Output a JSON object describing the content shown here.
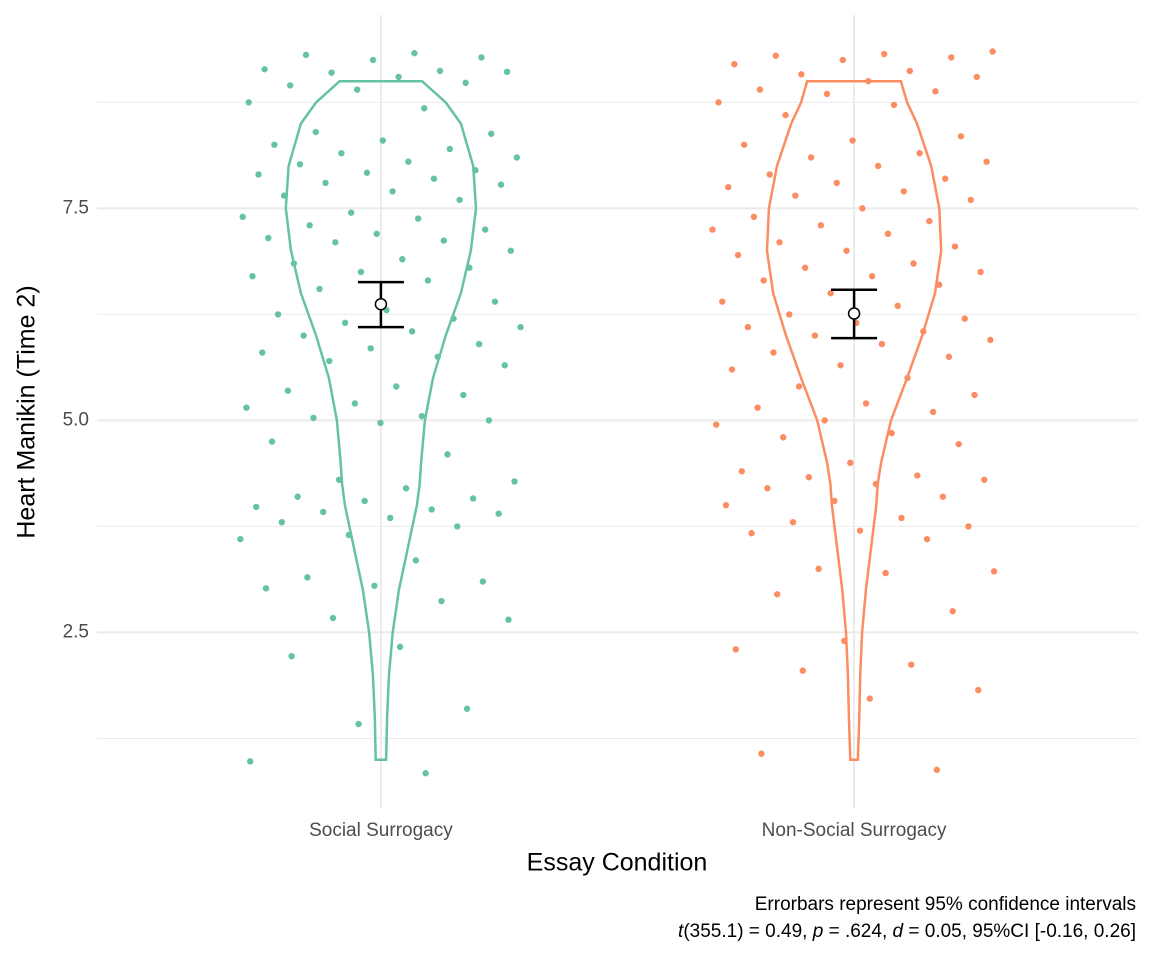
{
  "chart_data": {
    "type": "violin",
    "x_label": "Essay Condition",
    "y_label": "Heart Manikin (Time 2)",
    "categories": [
      "Social Surrogacy",
      "Non-Social Surrogacy"
    ],
    "ylim": [
      0.43,
      9.78
    ],
    "yticks": [
      2.5,
      {
        "value": 5,
        "label": "5.0"
      },
      7.5
    ],
    "yminor": [
      1.25,
      3.75,
      6.25,
      8.75
    ],
    "grid": true,
    "violin_y": [
      9,
      8.75,
      8.5,
      8,
      7.5,
      7,
      6.5,
      6,
      5.5,
      5,
      4.5,
      4.25,
      4,
      3.5,
      3,
      2.5,
      2,
      1.5,
      1
    ],
    "groups": [
      {
        "color": "#66c2a5",
        "mean": 6.37,
        "ci_low": 6.1,
        "ci_high": 6.63,
        "violin_width": [
          0.087,
          0.137,
          0.169,
          0.195,
          0.201,
          0.19,
          0.169,
          0.137,
          0.11,
          0.093,
          0.085,
          0.082,
          0.076,
          0.057,
          0.038,
          0.025,
          0.017,
          0.013,
          0.011
        ],
        "points": [
          9.33,
          9.31,
          9.28,
          9.25,
          9.14,
          9.12,
          9.1,
          9.11,
          9.05,
          8.95,
          8.98,
          8.9,
          8.75,
          8.68,
          8.4,
          8.38,
          8.3,
          8.25,
          8.2,
          8.15,
          8.1,
          8.05,
          8.02,
          7.95,
          7.92,
          7.9,
          7.85,
          7.8,
          7.78,
          7.7,
          7.65,
          7.6,
          7.45,
          7.4,
          7.38,
          7.3,
          7.25,
          7.2,
          7.15,
          7.12,
          7.1,
          7.0,
          6.9,
          6.85,
          6.8,
          6.75,
          6.7,
          6.65,
          6.55,
          6.4,
          6.3,
          6.25,
          6.2,
          6.15,
          6.1,
          6.05,
          6.0,
          5.9,
          5.85,
          5.8,
          5.75,
          5.7,
          5.65,
          5.4,
          5.35,
          5.3,
          5.2,
          5.15,
          5.05,
          5.03,
          5.0,
          4.97,
          4.75,
          4.6,
          4.3,
          4.28,
          4.2,
          4.1,
          4.08,
          4.05,
          3.98,
          3.95,
          3.92,
          3.9,
          3.85,
          3.8,
          3.75,
          3.65,
          3.6,
          3.35,
          3.15,
          3.1,
          3.05,
          3.02,
          2.87,
          2.67,
          2.65,
          2.33,
          2.22,
          1.6,
          1.42,
          0.98,
          0.84
        ]
      },
      {
        "color": "#fc8d62",
        "mean": 6.26,
        "ci_low": 5.97,
        "ci_high": 6.54,
        "violin_width": [
          0.099,
          0.112,
          0.133,
          0.163,
          0.18,
          0.184,
          0.171,
          0.144,
          0.112,
          0.078,
          0.057,
          0.05,
          0.047,
          0.036,
          0.025,
          0.017,
          0.013,
          0.011,
          0.008
        ],
        "points": [
          9.35,
          9.32,
          9.3,
          9.28,
          9.25,
          9.2,
          9.12,
          9.08,
          9.05,
          9.0,
          8.9,
          8.88,
          8.85,
          8.75,
          8.72,
          8.6,
          8.35,
          8.3,
          8.25,
          8.15,
          8.1,
          8.05,
          8.0,
          7.9,
          7.85,
          7.8,
          7.75,
          7.7,
          7.65,
          7.6,
          7.5,
          7.4,
          7.35,
          7.3,
          7.25,
          7.2,
          7.1,
          7.05,
          7.0,
          6.95,
          6.85,
          6.8,
          6.75,
          6.7,
          6.65,
          6.6,
          6.5,
          6.4,
          6.35,
          6.25,
          6.2,
          6.15,
          6.1,
          6.05,
          6.0,
          5.95,
          5.9,
          5.8,
          5.75,
          5.65,
          5.6,
          5.5,
          5.4,
          5.3,
          5.2,
          5.15,
          5.1,
          5.0,
          4.95,
          4.85,
          4.8,
          4.72,
          4.5,
          4.4,
          4.35,
          4.33,
          4.3,
          4.25,
          4.2,
          4.1,
          4.05,
          4.0,
          3.85,
          3.8,
          3.75,
          3.7,
          3.67,
          3.6,
          3.25,
          3.22,
          3.2,
          2.95,
          2.75,
          2.4,
          2.3,
          2.12,
          2.05,
          1.82,
          1.72,
          1.07,
          0.88
        ]
      }
    ],
    "caption": "Errorbars represent 95% confidence intervals",
    "caption_stats": [
      {
        "text": "t",
        "italic": true
      },
      {
        "text": "(355.1) = 0.49, "
      },
      {
        "text": "p",
        "italic": true
      },
      {
        "text": " = .624, "
      },
      {
        "text": "d",
        "italic": true
      },
      {
        "text": " = 0.05, 95%CI [-0.16, 0.26]"
      }
    ]
  }
}
